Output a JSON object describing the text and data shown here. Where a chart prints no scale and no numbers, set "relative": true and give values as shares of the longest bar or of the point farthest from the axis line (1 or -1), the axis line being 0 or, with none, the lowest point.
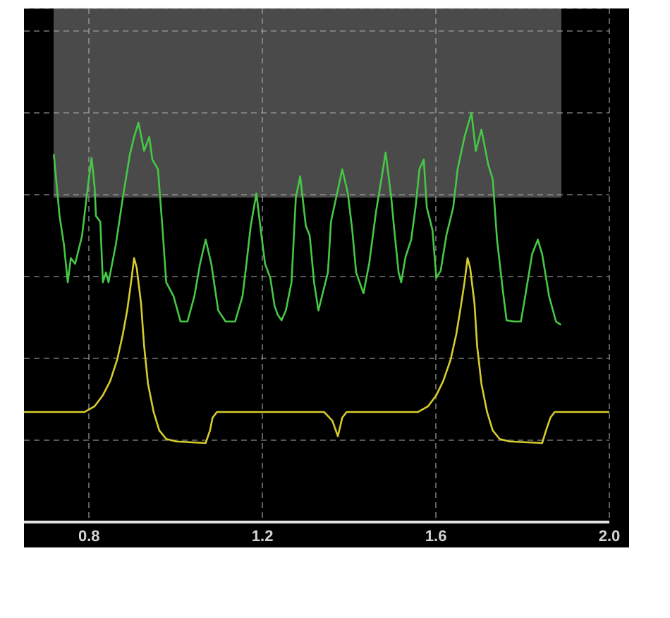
{
  "chart_data": {
    "type": "line",
    "relative": true,
    "grid": true,
    "xlim": [
      0.65,
      2.0
    ],
    "xticks": [
      0.8,
      1.2,
      1.6,
      {
        "value": 2.0,
        "label": "2.0"
      }
    ],
    "series": [
      {
        "color": "#45c845",
        "x": [
          0.719,
          0.732,
          0.742,
          0.751,
          0.758,
          0.768,
          0.784,
          0.797,
          0.806,
          0.813,
          0.816,
          0.826,
          0.832,
          0.839,
          0.845,
          0.862,
          0.878,
          0.894,
          0.904,
          0.914,
          0.927,
          0.939,
          0.946,
          0.959,
          0.969,
          0.978,
          0.995,
          1.011,
          1.027,
          1.043,
          1.056,
          1.069,
          1.082,
          1.098,
          1.115,
          1.137,
          1.154,
          1.163,
          1.173,
          1.186,
          1.196,
          1.206,
          1.218,
          1.228,
          1.235,
          1.244,
          1.254,
          1.267,
          1.277,
          1.287,
          1.3,
          1.309,
          1.319,
          1.329,
          1.351,
          1.358,
          1.368,
          1.384,
          1.397,
          1.407,
          1.416,
          1.433,
          1.446,
          1.462,
          1.478,
          1.484,
          1.497,
          1.504,
          1.514,
          1.52,
          1.53,
          1.543,
          1.553,
          1.562,
          1.572,
          1.579,
          1.592,
          1.601,
          1.611,
          1.624,
          1.64,
          1.65,
          1.666,
          1.682,
          1.692,
          1.705,
          1.721,
          1.731,
          1.741,
          1.754,
          1.763,
          1.78,
          1.796,
          1.806,
          1.822,
          1.835,
          1.845,
          1.861,
          1.877,
          1.887
        ],
        "values": [
          0.897,
          0.748,
          0.679,
          0.586,
          0.645,
          0.631,
          0.7,
          0.817,
          0.89,
          0.817,
          0.748,
          0.734,
          0.586,
          0.61,
          0.586,
          0.679,
          0.793,
          0.897,
          0.941,
          0.976,
          0.907,
          0.941,
          0.886,
          0.862,
          0.724,
          0.586,
          0.552,
          0.49,
          0.49,
          0.552,
          0.631,
          0.69,
          0.631,
          0.517,
          0.49,
          0.49,
          0.552,
          0.631,
          0.724,
          0.803,
          0.714,
          0.631,
          0.597,
          0.528,
          0.507,
          0.493,
          0.517,
          0.586,
          0.793,
          0.845,
          0.724,
          0.7,
          0.586,
          0.517,
          0.61,
          0.734,
          0.783,
          0.862,
          0.803,
          0.714,
          0.61,
          0.559,
          0.631,
          0.759,
          0.862,
          0.903,
          0.793,
          0.714,
          0.61,
          0.586,
          0.648,
          0.69,
          0.769,
          0.862,
          0.886,
          0.769,
          0.714,
          0.597,
          0.614,
          0.7,
          0.769,
          0.862,
          0.941,
          1.0,
          0.907,
          0.959,
          0.872,
          0.838,
          0.69,
          0.569,
          0.493,
          0.49,
          0.49,
          0.552,
          0.655,
          0.69,
          0.655,
          0.552,
          0.49,
          0.483
        ]
      },
      {
        "color": "#d6cc2e",
        "x": [
          0.65,
          0.725,
          0.79,
          0.813,
          0.832,
          0.849,
          0.865,
          0.878,
          0.888,
          0.897,
          0.904,
          0.91,
          0.92,
          0.927,
          0.936,
          0.949,
          0.962,
          0.978,
          1.001,
          1.069,
          1.079,
          1.085,
          1.095,
          1.212,
          1.342,
          1.361,
          1.374,
          1.384,
          1.394,
          1.472,
          1.559,
          1.582,
          1.601,
          1.617,
          1.634,
          1.647,
          1.656,
          1.666,
          1.673,
          1.679,
          1.689,
          1.695,
          1.705,
          1.718,
          1.731,
          1.747,
          1.77,
          1.845,
          1.854,
          1.864,
          1.874,
          2.0
        ],
        "values": [
          0.269,
          0.269,
          0.269,
          0.283,
          0.31,
          0.345,
          0.397,
          0.459,
          0.517,
          0.586,
          0.645,
          0.621,
          0.534,
          0.431,
          0.338,
          0.269,
          0.224,
          0.203,
          0.197,
          0.193,
          0.224,
          0.255,
          0.269,
          0.269,
          0.269,
          0.248,
          0.21,
          0.255,
          0.269,
          0.269,
          0.269,
          0.283,
          0.31,
          0.345,
          0.397,
          0.459,
          0.517,
          0.586,
          0.645,
          0.621,
          0.534,
          0.431,
          0.338,
          0.269,
          0.224,
          0.203,
          0.197,
          0.193,
          0.224,
          0.255,
          0.269,
          0.269
        ]
      }
    ]
  }
}
